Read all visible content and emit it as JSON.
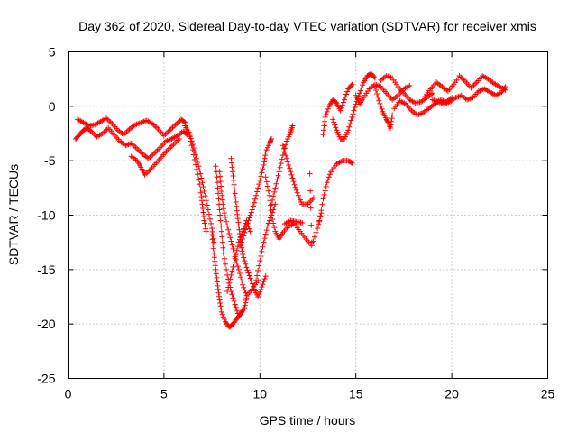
{
  "chart_data": {
    "type": "scatter",
    "title": "Day 362 of 2020, Sidereal Day-to-day VTEC variation (SDTVAR) for receiver xmis",
    "xlabel": "GPS time / hours",
    "ylabel": "SDTVAR / TECUs",
    "xlim": [
      0,
      25
    ],
    "ylim": [
      -25,
      5
    ],
    "xticks": [
      0,
      5,
      10,
      15,
      20,
      25
    ],
    "yticks": [
      -25,
      -20,
      -15,
      -10,
      -5,
      0,
      5
    ],
    "grid": true,
    "marker": "+",
    "color": "#ff0000",
    "series": [
      {
        "points": [
          [
            0.4,
            -3.0
          ],
          [
            0.6,
            -2.6
          ],
          [
            0.8,
            -2.2
          ],
          [
            1.0,
            -2.0
          ],
          [
            1.2,
            -2.3
          ],
          [
            1.5,
            -2.8
          ],
          [
            1.8,
            -2.5
          ],
          [
            2.1,
            -2.0
          ],
          [
            2.4,
            -2.6
          ],
          [
            2.7,
            -3.2
          ],
          [
            3.0,
            -3.6
          ],
          [
            3.3,
            -3.4
          ],
          [
            3.6,
            -3.9
          ],
          [
            3.9,
            -4.4
          ],
          [
            4.2,
            -4.8
          ],
          [
            4.5,
            -4.3
          ],
          [
            4.8,
            -3.8
          ],
          [
            5.1,
            -3.2
          ],
          [
            5.4,
            -3.0
          ],
          [
            5.7,
            -2.7
          ],
          [
            6.0,
            -2.3
          ],
          [
            6.2,
            -2.6
          ]
        ]
      },
      {
        "points": [
          [
            0.5,
            -1.2
          ],
          [
            0.8,
            -1.5
          ],
          [
            1.1,
            -1.8
          ],
          [
            1.4,
            -1.7
          ],
          [
            1.7,
            -1.4
          ],
          [
            2.0,
            -1.1
          ],
          [
            2.3,
            -1.6
          ],
          [
            2.6,
            -2.2
          ],
          [
            2.9,
            -2.6
          ],
          [
            3.2,
            -2.1
          ],
          [
            3.5,
            -1.7
          ],
          [
            3.8,
            -1.5
          ],
          [
            4.1,
            -1.3
          ],
          [
            4.4,
            -1.6
          ],
          [
            4.7,
            -2.1
          ],
          [
            5.0,
            -2.7
          ],
          [
            5.3,
            -2.2
          ],
          [
            5.6,
            -1.7
          ],
          [
            5.9,
            -1.2
          ],
          [
            6.1,
            -1.5
          ]
        ]
      },
      {
        "points": [
          [
            3.3,
            -4.6
          ],
          [
            3.6,
            -5.0
          ],
          [
            3.8,
            -5.6
          ],
          [
            4.0,
            -6.3
          ],
          [
            4.3,
            -5.8
          ],
          [
            4.6,
            -5.2
          ],
          [
            4.9,
            -4.6
          ],
          [
            5.2,
            -4.0
          ],
          [
            5.5,
            -3.5
          ],
          [
            5.8,
            -3.0
          ]
        ]
      },
      {
        "points": [
          [
            6.1,
            -1.8
          ],
          [
            6.3,
            -2.4
          ],
          [
            6.5,
            -3.5
          ],
          [
            6.7,
            -4.8
          ],
          [
            6.9,
            -6.2
          ],
          [
            7.1,
            -7.8
          ],
          [
            7.3,
            -9.5
          ],
          [
            7.5,
            -11.2
          ],
          [
            7.6,
            -12.5
          ]
        ]
      },
      {
        "points": [
          [
            6.3,
            -2.4
          ],
          [
            6.5,
            -4.0
          ],
          [
            6.7,
            -5.8
          ],
          [
            6.9,
            -7.6
          ],
          [
            7.0,
            -9.0
          ],
          [
            7.1,
            -10.5
          ],
          [
            7.2,
            -11.5
          ]
        ]
      },
      {
        "points": [
          [
            7.5,
            -11.8
          ],
          [
            7.6,
            -13.5
          ],
          [
            7.7,
            -15.0
          ],
          [
            7.8,
            -16.5
          ],
          [
            7.9,
            -17.8
          ],
          [
            8.0,
            -18.9
          ],
          [
            8.2,
            -19.8
          ],
          [
            8.4,
            -20.3
          ],
          [
            8.6,
            -20.0
          ],
          [
            8.8,
            -19.5
          ],
          [
            9.0,
            -19.0
          ],
          [
            9.2,
            -18.5
          ],
          [
            9.3,
            -17.6
          ]
        ]
      },
      {
        "points": [
          [
            7.7,
            -5.5
          ],
          [
            7.8,
            -7.5
          ],
          [
            7.9,
            -9.5
          ],
          [
            8.0,
            -11.5
          ],
          [
            8.1,
            -13.5
          ],
          [
            8.3,
            -15.5
          ],
          [
            8.5,
            -17.0
          ],
          [
            8.7,
            -18.2
          ],
          [
            8.9,
            -19.3
          ],
          [
            9.1,
            -18.8
          ]
        ]
      },
      {
        "points": [
          [
            7.9,
            -6.0
          ],
          [
            8.0,
            -7.8
          ],
          [
            8.1,
            -9.4
          ],
          [
            8.3,
            -11.0
          ],
          [
            8.5,
            -12.4
          ],
          [
            8.7,
            -13.8
          ],
          [
            8.9,
            -15.0
          ],
          [
            9.1,
            -16.4
          ],
          [
            9.3,
            -17.4
          ],
          [
            9.6,
            -16.8
          ],
          [
            9.9,
            -16.0
          ]
        ]
      },
      {
        "points": [
          [
            8.3,
            -17.0
          ],
          [
            8.5,
            -15.5
          ],
          [
            8.7,
            -14.0
          ],
          [
            8.9,
            -12.5
          ],
          [
            9.1,
            -11.5
          ],
          [
            9.3,
            -10.5
          ],
          [
            9.5,
            -11.5
          ]
        ]
      },
      {
        "points": [
          [
            8.5,
            -4.8
          ],
          [
            8.6,
            -6.4
          ],
          [
            8.7,
            -8.0
          ],
          [
            8.8,
            -9.6
          ],
          [
            8.9,
            -11.0
          ],
          [
            9.0,
            -12.4
          ],
          [
            9.1,
            -13.6
          ],
          [
            9.3,
            -14.8
          ],
          [
            9.5,
            -15.8
          ],
          [
            9.7,
            -16.8
          ],
          [
            9.9,
            -17.5
          ],
          [
            10.1,
            -16.6
          ],
          [
            10.3,
            -15.6
          ]
        ]
      },
      {
        "points": [
          [
            9.0,
            -12.8
          ],
          [
            9.2,
            -11.6
          ],
          [
            9.4,
            -10.5
          ],
          [
            9.6,
            -9.5
          ],
          [
            9.8,
            -8.2
          ],
          [
            10.0,
            -6.8
          ],
          [
            10.2,
            -5.4
          ],
          [
            10.3,
            -4.2
          ],
          [
            10.5,
            -3.4
          ],
          [
            10.6,
            -3.0
          ]
        ]
      },
      {
        "points": [
          [
            9.8,
            -16.0
          ],
          [
            10.0,
            -14.2
          ],
          [
            10.2,
            -12.5
          ],
          [
            10.4,
            -11.0
          ],
          [
            10.6,
            -10.0
          ],
          [
            10.8,
            -9.0
          ]
        ]
      },
      {
        "points": [
          [
            10.3,
            -6.5
          ],
          [
            10.5,
            -8.2
          ],
          [
            10.6,
            -10.0
          ],
          [
            10.8,
            -11.5
          ],
          [
            11.0,
            -12.2
          ],
          [
            11.2,
            -11.6
          ],
          [
            11.5,
            -11.0
          ],
          [
            11.8,
            -10.8
          ],
          [
            12.1,
            -11.5
          ],
          [
            12.4,
            -12.2
          ],
          [
            12.7,
            -12.8
          ],
          [
            13.0,
            -11.2
          ],
          [
            13.2,
            -9.8
          ]
        ]
      },
      {
        "points": [
          [
            11.3,
            -10.8
          ],
          [
            11.6,
            -10.5
          ],
          [
            11.9,
            -10.6
          ],
          [
            12.2,
            -10.7
          ]
        ]
      },
      {
        "points": [
          [
            10.6,
            -9.0
          ],
          [
            10.8,
            -7.5
          ],
          [
            11.0,
            -6.0
          ],
          [
            11.2,
            -4.5
          ],
          [
            11.4,
            -3.2
          ],
          [
            11.6,
            -2.4
          ],
          [
            11.7,
            -1.8
          ]
        ]
      },
      {
        "points": [
          [
            11.2,
            -3.6
          ],
          [
            11.4,
            -4.8
          ],
          [
            11.6,
            -6.0
          ],
          [
            11.8,
            -7.2
          ],
          [
            12.0,
            -8.2
          ],
          [
            12.2,
            -9.0
          ],
          [
            12.5,
            -9.0
          ],
          [
            12.8,
            -8.4
          ]
        ]
      },
      {
        "points": [
          [
            12.6,
            -6.2
          ],
          [
            12.7,
            -12.5
          ]
        ]
      },
      {
        "points": [
          [
            13.1,
            -10.6
          ],
          [
            13.3,
            -8.5
          ],
          [
            13.5,
            -7.0
          ],
          [
            13.7,
            -6.0
          ],
          [
            14.0,
            -5.3
          ],
          [
            14.3,
            -5.0
          ],
          [
            14.6,
            -5.0
          ],
          [
            14.8,
            -5.2
          ]
        ]
      },
      {
        "points": [
          [
            13.3,
            -2.6
          ],
          [
            13.4,
            -1.0
          ],
          [
            13.6,
            0.0
          ],
          [
            13.8,
            0.6
          ],
          [
            14.0,
            0.3
          ],
          [
            14.2,
            -0.4
          ],
          [
            14.4,
            0.6
          ],
          [
            14.6,
            1.6
          ],
          [
            14.8,
            2.0
          ]
        ]
      },
      {
        "points": [
          [
            13.8,
            -1.2
          ],
          [
            14.0,
            -2.2
          ],
          [
            14.2,
            -3.0
          ],
          [
            14.4,
            -3.0
          ],
          [
            14.6,
            -2.2
          ],
          [
            14.8,
            -1.0
          ],
          [
            15.0,
            0.2
          ],
          [
            15.2,
            1.2
          ],
          [
            15.4,
            2.2
          ],
          [
            15.6,
            2.8
          ],
          [
            15.8,
            3.0
          ],
          [
            16.0,
            2.6
          ]
        ]
      },
      {
        "points": [
          [
            15.0,
            1.0
          ],
          [
            15.2,
            0.2
          ],
          [
            15.4,
            0.8
          ],
          [
            15.7,
            1.6
          ],
          [
            16.0,
            2.0
          ],
          [
            16.3,
            1.8
          ],
          [
            16.6,
            1.2
          ],
          [
            16.9,
            0.6
          ],
          [
            17.2,
            1.0
          ],
          [
            17.5,
            1.6
          ],
          [
            17.8,
            1.9
          ]
        ]
      },
      {
        "points": [
          [
            16.0,
            1.8
          ],
          [
            16.2,
            0.5
          ],
          [
            16.4,
            -0.5
          ],
          [
            16.6,
            -1.2
          ],
          [
            16.7,
            -1.5
          ],
          [
            16.8,
            -2.0
          ],
          [
            16.9,
            -0.8
          ]
        ]
      },
      {
        "points": [
          [
            16.3,
            2.4
          ],
          [
            16.6,
            2.8
          ],
          [
            16.9,
            2.6
          ],
          [
            17.2,
            1.8
          ],
          [
            17.5,
            1.2
          ],
          [
            17.8,
            0.6
          ],
          [
            18.1,
            0.3
          ],
          [
            18.4,
            0.4
          ],
          [
            18.7,
            0.8
          ],
          [
            19.0,
            1.2
          ]
        ]
      },
      {
        "points": [
          [
            17.0,
            -0.2
          ],
          [
            17.3,
            0.5
          ],
          [
            17.6,
            0.2
          ],
          [
            17.9,
            -0.4
          ],
          [
            18.2,
            -0.8
          ],
          [
            18.5,
            -0.6
          ],
          [
            18.8,
            -0.2
          ],
          [
            19.1,
            0.2
          ],
          [
            19.4,
            0.6
          ],
          [
            19.7,
            0.4
          ],
          [
            20.0,
            0.8
          ]
        ]
      },
      {
        "points": [
          [
            18.6,
            0.9
          ],
          [
            18.9,
            1.6
          ],
          [
            19.2,
            2.2
          ],
          [
            19.5,
            1.8
          ],
          [
            19.8,
            1.4
          ],
          [
            20.1,
            2.0
          ],
          [
            20.4,
            2.8
          ],
          [
            20.7,
            2.3
          ],
          [
            21.0,
            1.7
          ],
          [
            21.3,
            2.2
          ],
          [
            21.6,
            2.8
          ],
          [
            21.9,
            2.5
          ],
          [
            22.2,
            2.1
          ],
          [
            22.5,
            1.8
          ],
          [
            22.8,
            1.5
          ]
        ]
      },
      {
        "points": [
          [
            19.0,
            0.6
          ],
          [
            19.3,
            0.4
          ],
          [
            19.6,
            0.2
          ],
          [
            19.9,
            0.4
          ],
          [
            20.2,
            0.8
          ],
          [
            20.5,
            1.0
          ],
          [
            20.8,
            0.6
          ],
          [
            21.1,
            0.8
          ],
          [
            21.4,
            1.4
          ],
          [
            21.7,
            1.6
          ],
          [
            22.0,
            1.3
          ],
          [
            22.3,
            1.0
          ],
          [
            22.6,
            1.3
          ],
          [
            22.8,
            1.8
          ]
        ]
      }
    ]
  }
}
